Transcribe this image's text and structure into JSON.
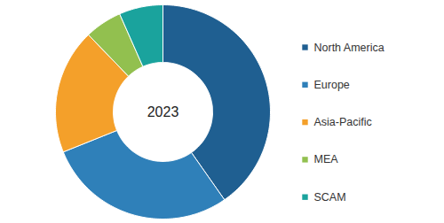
{
  "chart_data": {
    "type": "pie",
    "title": "2023",
    "categories": [
      "North America",
      "Europe",
      "Asia-Pacific",
      "MEA",
      "SCAM"
    ],
    "values": [
      40.3,
      28.6,
      18.9,
      5.6,
      6.6
    ],
    "colors": [
      "#1f5f91",
      "#2f80b9",
      "#f4a02a",
      "#92c04f",
      "#1aa39d"
    ],
    "legend": "right"
  }
}
